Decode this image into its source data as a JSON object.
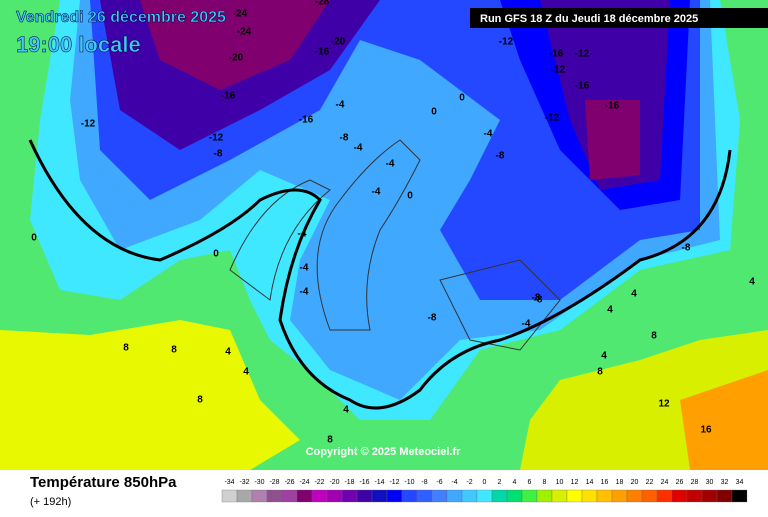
{
  "header": {
    "date": "Vendredi 26 décembre 2025",
    "time": "19:00 locale",
    "run": "Run GFS 18 Z du Jeudi 18 décembre 2025"
  },
  "copyright": "Copyright © 2025 Meteociel.fr",
  "footer": {
    "title": "Température 850hPa",
    "lead": "(+ 192h)"
  },
  "legend": {
    "values": [
      "-34",
      "-32",
      "-30",
      "-28",
      "-26",
      "-24",
      "-22",
      "-20",
      "-18",
      "-16",
      "-14",
      "-12",
      "-10",
      "-8",
      "-6",
      "-4",
      "-2",
      "0",
      "2",
      "4",
      "6",
      "8",
      "10",
      "12",
      "14",
      "16",
      "18",
      "20",
      "22",
      "24",
      "26",
      "28",
      "30",
      "32",
      "34"
    ],
    "colors": [
      "#d0d0d0",
      "#a8a8a8",
      "#b080b0",
      "#905090",
      "#a040a0",
      "#800070",
      "#c000c0",
      "#a000b0",
      "#7000b0",
      "#4000a8",
      "#1010c0",
      "#0000ff",
      "#2448ff",
      "#3060ff",
      "#4080ff",
      "#40a8ff",
      "#40c8ff",
      "#40e8ff",
      "#00d8a8",
      "#00e070",
      "#40f040",
      "#a0f000",
      "#d8f000",
      "#ffff00",
      "#ffe000",
      "#ffc000",
      "#ffa000",
      "#ff8000",
      "#ff6000",
      "#ff3000",
      "#e00000",
      "#c00000",
      "#a00000",
      "#800000",
      "#000000"
    ]
  },
  "contour_labels": [
    "-24",
    "-28",
    "-20",
    "-24",
    "-16",
    "-20",
    "-16",
    "-12",
    "-16",
    "-12",
    "-8",
    "-4",
    "-8",
    "-4",
    "0",
    "0",
    "-4",
    "-4",
    "-4",
    "0",
    "-4",
    "-4",
    "-4",
    "-8",
    "-8",
    "-4",
    "-12",
    "-12",
    "-12",
    "-16",
    "-12",
    "-16",
    "-16",
    "-8",
    "4",
    "4",
    "4",
    "8",
    "8",
    "8",
    "8",
    "4",
    "4",
    "12",
    "16",
    "8",
    "0",
    "0",
    "-8",
    "-8",
    "4",
    "4",
    "8"
  ]
}
